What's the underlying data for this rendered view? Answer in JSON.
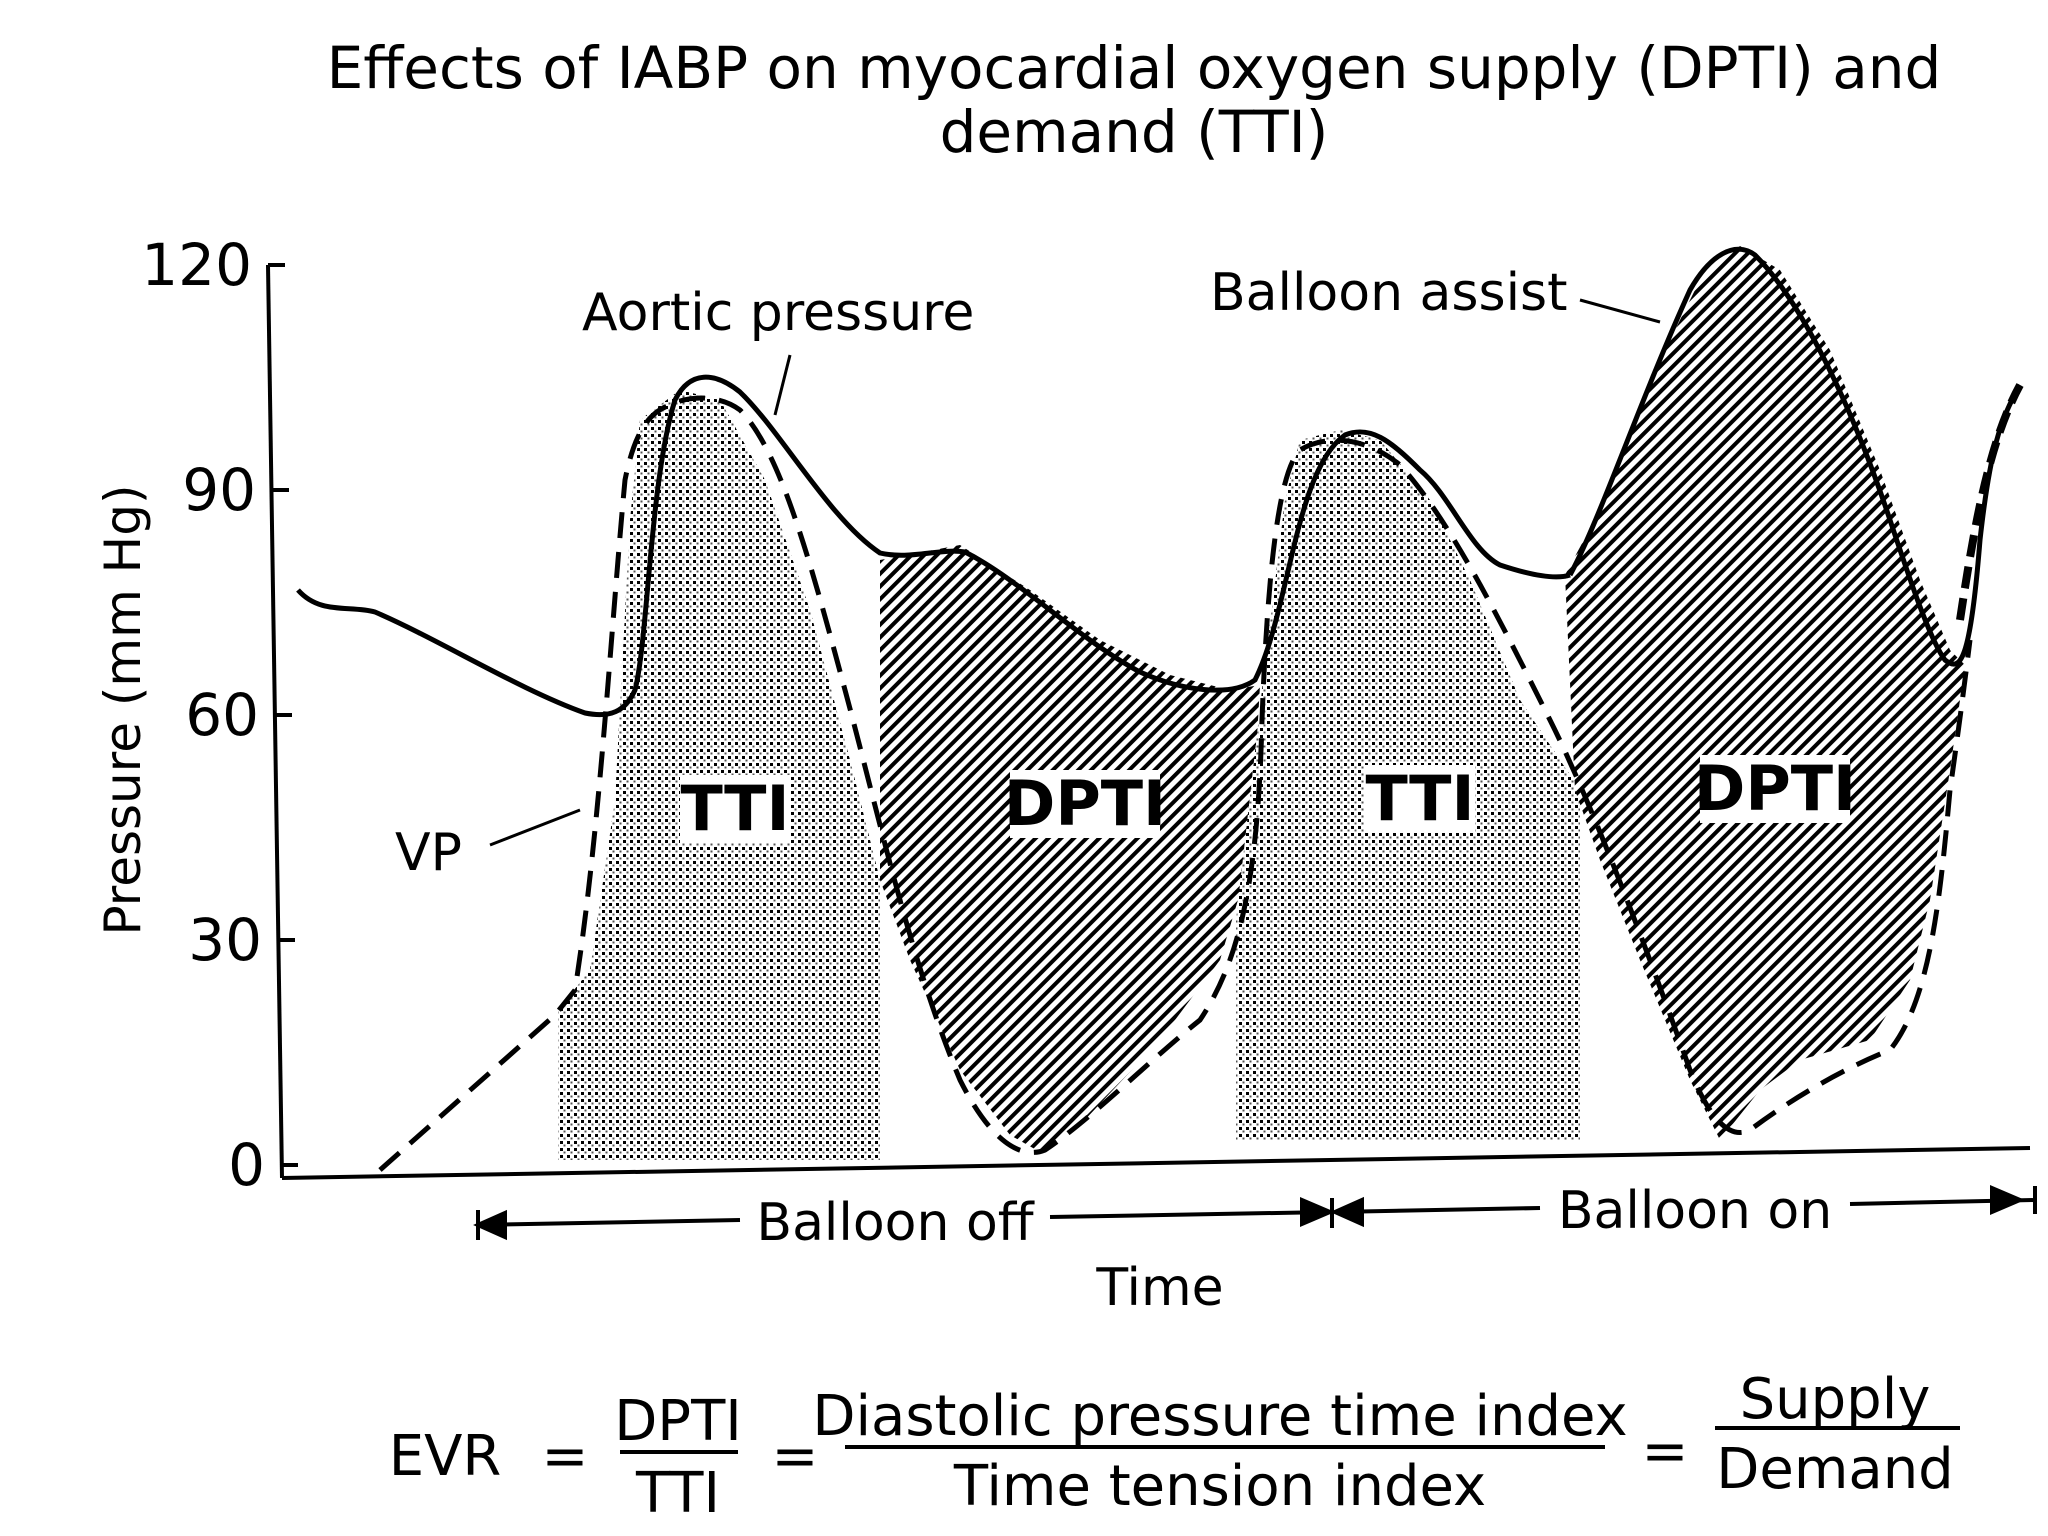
{
  "chart_data": {
    "type": "line",
    "title": "Effects of IABP on myocardial oxygen supply (DPTI) and",
    "title_line2": "demand (TTI)",
    "xlabel": "Time",
    "ylabel": "Pressure (mm Hg)",
    "ylim": [
      0,
      120
    ],
    "yticks": [
      "0",
      "30",
      "60",
      "90",
      "120"
    ],
    "series": [
      {
        "name": "Aortic pressure",
        "style": "solid"
      },
      {
        "name": "VP",
        "style": "dashed"
      },
      {
        "name": "Balloon assist",
        "style": "solid"
      }
    ],
    "regions": [
      {
        "label": "TTI",
        "fill": "dotted",
        "phase": "Balloon off"
      },
      {
        "label": "DPTI",
        "fill": "hatched",
        "phase": "Balloon off"
      },
      {
        "label": "TTI",
        "fill": "dotted",
        "phase": "Balloon on"
      },
      {
        "label": "DPTI",
        "fill": "hatched",
        "phase": "Balloon on"
      }
    ],
    "phases": [
      "Balloon off",
      "Balloon on"
    ],
    "grid": false
  },
  "equation": {
    "lhs": "EVR",
    "eq": "=",
    "frac1_num": "DPTI",
    "frac1_den": "TTI",
    "frac2_num": "Diastolic pressure time index",
    "frac2_den": "Time tension index",
    "frac3_num": "Supply",
    "frac3_den": "Demand"
  }
}
